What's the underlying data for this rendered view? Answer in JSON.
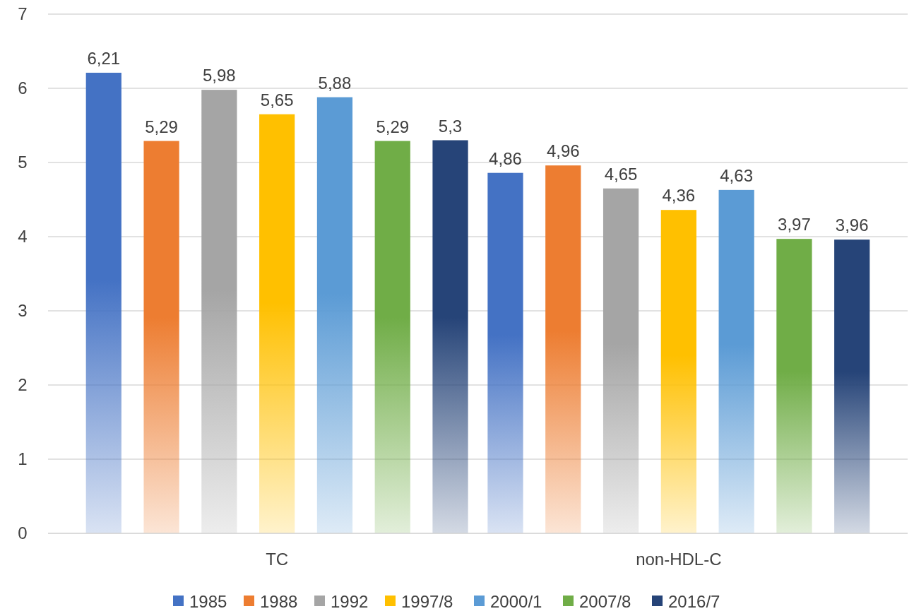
{
  "chart_data": {
    "type": "bar",
    "categories": [
      "TC",
      "non-HDL-C"
    ],
    "series": [
      {
        "name": "1985",
        "color": "#4472c4",
        "values": [
          6.21,
          4.86
        ],
        "value_labels": [
          "6,21",
          "4,86"
        ]
      },
      {
        "name": "1988",
        "color": "#ed7d31",
        "values": [
          5.29,
          4.96
        ],
        "value_labels": [
          "5,29",
          "4,96"
        ]
      },
      {
        "name": "1992",
        "color": "#a5a5a5",
        "values": [
          5.98,
          4.65
        ],
        "value_labels": [
          "5,98",
          "4,65"
        ]
      },
      {
        "name": "1997/8",
        "color": "#ffc000",
        "values": [
          5.65,
          4.36
        ],
        "value_labels": [
          "5,65",
          "4,36"
        ]
      },
      {
        "name": "2000/1",
        "color": "#5b9bd5",
        "values": [
          5.88,
          4.63
        ],
        "value_labels": [
          "5,88",
          "4,63"
        ]
      },
      {
        "name": "2007/8",
        "color": "#70ad47",
        "values": [
          5.29,
          3.97
        ],
        "value_labels": [
          "5,29",
          "3,97"
        ]
      },
      {
        "name": "2016/7",
        "color": "#264478",
        "values": [
          5.3,
          3.96
        ],
        "value_labels": [
          "5,3",
          "3,96"
        ]
      }
    ],
    "ylim": [
      0,
      7
    ],
    "yticks": [
      0,
      1,
      2,
      3,
      4,
      5,
      6,
      7
    ],
    "grid": "y",
    "legend": "bottom"
  }
}
